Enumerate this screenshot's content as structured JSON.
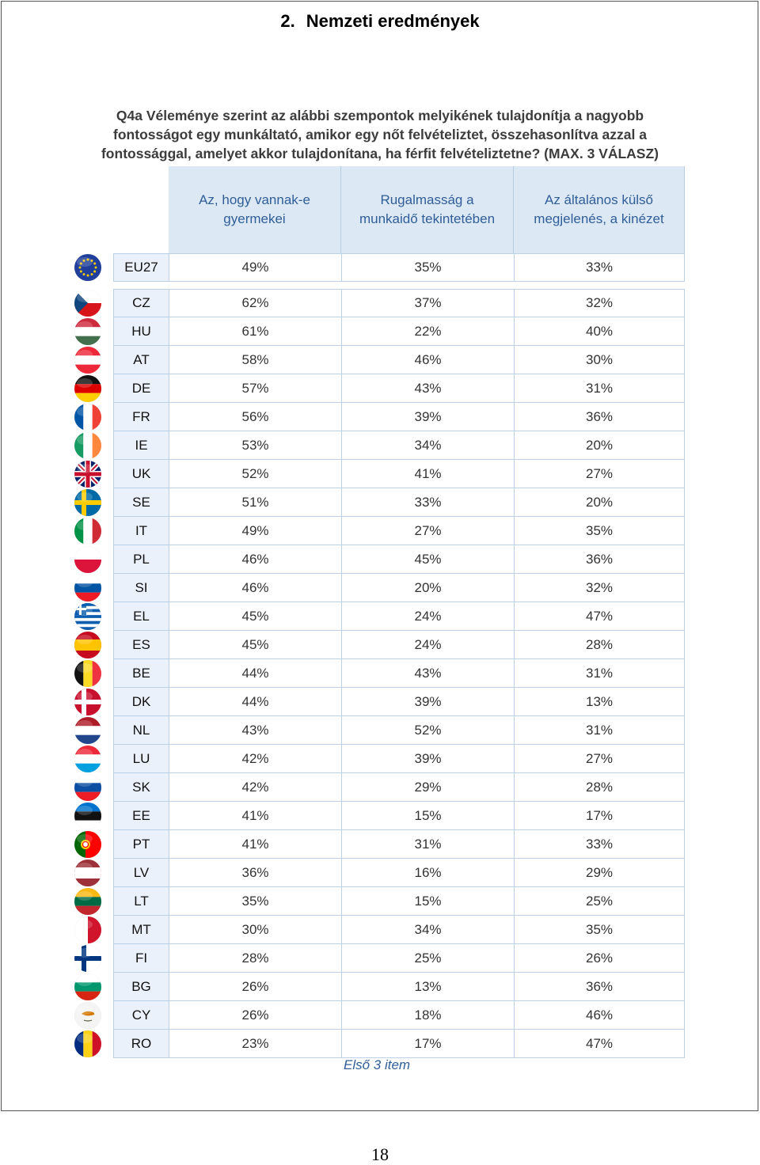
{
  "header": {
    "section_number": "2.",
    "section_title": "Nemzeti eredmények"
  },
  "question": {
    "line1": "Q4a Véleménye szerint az alábbi szempontok melyikének tulajdonítja a nagyobb",
    "line2": "fontosságot  egy munkáltató, amikor egy nőt felvételiztet, összehasonlítva azzal a",
    "line3": "fontossággal, amelyet akkor tulajdonítana, ha férfit felvételiztetne?  (MAX. 3 VÁLASZ)"
  },
  "columns": [
    {
      "line1": "Az, hogy vannak-e",
      "line2": "gyermekei"
    },
    {
      "line1": "Rugalmasság a",
      "line2": "munkaidő tekintetében"
    },
    {
      "line1": "Az általános külső",
      "line2": "megjelenés, a kinézet"
    }
  ],
  "rows": [
    {
      "code": "EU27",
      "values": [
        "49%",
        "35%",
        "33%"
      ]
    },
    {
      "code": "CZ",
      "values": [
        "62%",
        "37%",
        "32%"
      ]
    },
    {
      "code": "HU",
      "values": [
        "61%",
        "22%",
        "40%"
      ]
    },
    {
      "code": "AT",
      "values": [
        "58%",
        "46%",
        "30%"
      ]
    },
    {
      "code": "DE",
      "values": [
        "57%",
        "43%",
        "31%"
      ]
    },
    {
      "code": "FR",
      "values": [
        "56%",
        "39%",
        "36%"
      ]
    },
    {
      "code": "IE",
      "values": [
        "53%",
        "34%",
        "20%"
      ]
    },
    {
      "code": "UK",
      "values": [
        "52%",
        "41%",
        "27%"
      ]
    },
    {
      "code": "SE",
      "values": [
        "51%",
        "33%",
        "20%"
      ]
    },
    {
      "code": "IT",
      "values": [
        "49%",
        "27%",
        "35%"
      ]
    },
    {
      "code": "PL",
      "values": [
        "46%",
        "45%",
        "36%"
      ]
    },
    {
      "code": "SI",
      "values": [
        "46%",
        "20%",
        "32%"
      ]
    },
    {
      "code": "EL",
      "values": [
        "45%",
        "24%",
        "47%"
      ]
    },
    {
      "code": "ES",
      "values": [
        "45%",
        "24%",
        "28%"
      ]
    },
    {
      "code": "BE",
      "values": [
        "44%",
        "43%",
        "31%"
      ]
    },
    {
      "code": "DK",
      "values": [
        "44%",
        "39%",
        "13%"
      ]
    },
    {
      "code": "NL",
      "values": [
        "43%",
        "52%",
        "31%"
      ]
    },
    {
      "code": "LU",
      "values": [
        "42%",
        "39%",
        "27%"
      ]
    },
    {
      "code": "SK",
      "values": [
        "42%",
        "29%",
        "28%"
      ]
    },
    {
      "code": "EE",
      "values": [
        "41%",
        "15%",
        "17%"
      ]
    },
    {
      "code": "PT",
      "values": [
        "41%",
        "31%",
        "33%"
      ]
    },
    {
      "code": "LV",
      "values": [
        "36%",
        "16%",
        "29%"
      ]
    },
    {
      "code": "LT",
      "values": [
        "35%",
        "15%",
        "25%"
      ]
    },
    {
      "code": "MT",
      "values": [
        "30%",
        "34%",
        "35%"
      ]
    },
    {
      "code": "FI",
      "values": [
        "28%",
        "25%",
        "26%"
      ]
    },
    {
      "code": "BG",
      "values": [
        "26%",
        "13%",
        "36%"
      ]
    },
    {
      "code": "CY",
      "values": [
        "26%",
        "18%",
        "46%"
      ]
    },
    {
      "code": "RO",
      "values": [
        "23%",
        "17%",
        "47%"
      ]
    }
  ],
  "footnote": "Első 3 item",
  "page_number": "18",
  "colors": {
    "header_bg": "#dde8f5",
    "header_text": "#2f5e98",
    "code_bg": "#eaf1fa",
    "grid": "#bcd0e7"
  }
}
